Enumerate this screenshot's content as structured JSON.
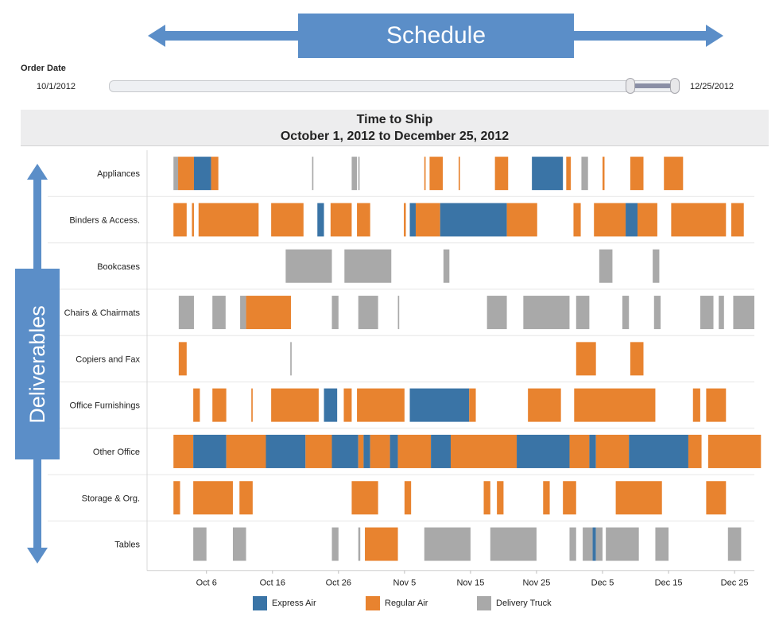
{
  "banner": {
    "schedule": "Schedule",
    "deliverables": "Deliverables"
  },
  "filter": {
    "title": "Order Date",
    "start": "10/1/2012",
    "end": "12/25/2012",
    "range_start_fraction": 0.92,
    "range_end_fraction": 1.0
  },
  "colors": {
    "express": "#3a74a6",
    "regular": "#e8832f",
    "truck": "#a9a9a9",
    "accent": "#5b8ec8"
  },
  "chart_data": {
    "type": "gantt",
    "title": "Time to Ship",
    "subtitle": "October 1, 2012 to December 25, 2012",
    "x_unit": "days since Oct 1, 2012",
    "xlim": [
      -4,
      88
    ],
    "tick_labels": [
      "Oct 6",
      "Oct 16",
      "Oct 26",
      "Nov 5",
      "Nov 15",
      "Nov 25",
      "Dec 5",
      "Dec 15",
      "Dec 25"
    ],
    "tick_values": [
      5,
      15,
      25,
      35,
      45,
      55,
      65,
      75,
      85
    ],
    "legend": [
      {
        "key": "express",
        "label": "Express Air"
      },
      {
        "key": "regular",
        "label": "Regular Air"
      },
      {
        "key": "truck",
        "label": "Delivery Truck"
      }
    ],
    "categories": [
      {
        "name": "Appliances",
        "bars": [
          [
            0.0,
            0.7,
            "truck"
          ],
          [
            0.7,
            3.1,
            "regular"
          ],
          [
            3.1,
            5.7,
            "express"
          ],
          [
            5.7,
            6.8,
            "regular"
          ],
          [
            21.0,
            21.2,
            "truck"
          ],
          [
            27.0,
            27.8,
            "truck"
          ],
          [
            28.0,
            28.2,
            "truck"
          ],
          [
            38.0,
            38.2,
            "regular"
          ],
          [
            38.8,
            40.8,
            "regular"
          ],
          [
            43.2,
            43.4,
            "regular"
          ],
          [
            48.7,
            50.7,
            "regular"
          ],
          [
            54.3,
            59.0,
            "express"
          ],
          [
            59.5,
            60.2,
            "regular"
          ],
          [
            61.8,
            62.8,
            "truck"
          ],
          [
            65.0,
            65.3,
            "regular"
          ],
          [
            69.2,
            71.2,
            "regular"
          ],
          [
            74.3,
            77.2,
            "regular"
          ]
        ]
      },
      {
        "name": "Binders & Access.",
        "bars": [
          [
            0.0,
            2.0,
            "regular"
          ],
          [
            2.8,
            3.1,
            "regular"
          ],
          [
            3.8,
            12.9,
            "regular"
          ],
          [
            14.8,
            19.7,
            "regular"
          ],
          [
            21.8,
            22.8,
            "express"
          ],
          [
            23.8,
            27.0,
            "regular"
          ],
          [
            27.8,
            29.8,
            "regular"
          ],
          [
            34.9,
            35.2,
            "regular"
          ],
          [
            35.8,
            36.7,
            "express"
          ],
          [
            36.7,
            40.4,
            "regular"
          ],
          [
            40.4,
            50.5,
            "express"
          ],
          [
            50.5,
            55.1,
            "regular"
          ],
          [
            60.6,
            61.7,
            "regular"
          ],
          [
            63.7,
            68.5,
            "regular"
          ],
          [
            68.5,
            70.3,
            "express"
          ],
          [
            70.3,
            73.3,
            "regular"
          ],
          [
            75.4,
            83.7,
            "regular"
          ],
          [
            84.5,
            86.4,
            "regular"
          ]
        ]
      },
      {
        "name": "Bookcases",
        "bars": [
          [
            17.0,
            24.0,
            "truck"
          ],
          [
            25.9,
            33.0,
            "truck"
          ],
          [
            40.9,
            41.8,
            "truck"
          ],
          [
            64.5,
            66.5,
            "truck"
          ],
          [
            72.6,
            73.6,
            "truck"
          ]
        ]
      },
      {
        "name": "Chairs & Chairmats",
        "bars": [
          [
            0.8,
            3.1,
            "truck"
          ],
          [
            5.9,
            7.9,
            "truck"
          ],
          [
            10.1,
            11.0,
            "truck"
          ],
          [
            11.0,
            17.8,
            "regular"
          ],
          [
            24.0,
            25.0,
            "truck"
          ],
          [
            28.0,
            31.0,
            "truck"
          ],
          [
            34.0,
            34.2,
            "truck"
          ],
          [
            47.5,
            50.5,
            "truck"
          ],
          [
            53.0,
            60.0,
            "truck"
          ],
          [
            61.0,
            63.0,
            "truck"
          ],
          [
            68.0,
            69.0,
            "truck"
          ],
          [
            72.8,
            73.8,
            "truck"
          ],
          [
            79.8,
            81.8,
            "truck"
          ],
          [
            82.6,
            83.4,
            "truck"
          ],
          [
            84.8,
            88.0,
            "truck"
          ]
        ]
      },
      {
        "name": "Copiers and Fax",
        "bars": [
          [
            0.8,
            2.0,
            "regular"
          ],
          [
            17.7,
            17.9,
            "truck"
          ],
          [
            61.0,
            64.0,
            "regular"
          ],
          [
            69.2,
            71.2,
            "regular"
          ]
        ]
      },
      {
        "name": "Office Furnishings",
        "bars": [
          [
            3.0,
            4.0,
            "regular"
          ],
          [
            5.9,
            8.0,
            "regular"
          ],
          [
            11.8,
            12.0,
            "regular"
          ],
          [
            14.8,
            22.0,
            "regular"
          ],
          [
            22.8,
            24.8,
            "express"
          ],
          [
            25.8,
            27.0,
            "regular"
          ],
          [
            27.8,
            35.0,
            "regular"
          ],
          [
            35.8,
            44.8,
            "express"
          ],
          [
            44.8,
            45.8,
            "regular"
          ],
          [
            53.7,
            58.7,
            "regular"
          ],
          [
            60.7,
            73.0,
            "regular"
          ],
          [
            78.7,
            79.8,
            "regular"
          ],
          [
            80.7,
            83.7,
            "regular"
          ]
        ]
      },
      {
        "name": "Other Office",
        "bars": [
          [
            0.0,
            3.0,
            "regular"
          ],
          [
            3.0,
            8.0,
            "express"
          ],
          [
            8.0,
            14.0,
            "regular"
          ],
          [
            14.0,
            20.0,
            "express"
          ],
          [
            20.0,
            24.0,
            "regular"
          ],
          [
            24.0,
            28.0,
            "express"
          ],
          [
            28.0,
            28.8,
            "regular"
          ],
          [
            28.8,
            29.8,
            "express"
          ],
          [
            29.8,
            32.8,
            "regular"
          ],
          [
            32.8,
            34.0,
            "express"
          ],
          [
            34.0,
            39.0,
            "regular"
          ],
          [
            39.0,
            42.0,
            "express"
          ],
          [
            42.0,
            52.0,
            "regular"
          ],
          [
            52.0,
            60.0,
            "express"
          ],
          [
            60.0,
            63.0,
            "regular"
          ],
          [
            63.0,
            64.0,
            "express"
          ],
          [
            64.0,
            69.0,
            "regular"
          ],
          [
            69.0,
            78.0,
            "express"
          ],
          [
            78.0,
            80.0,
            "regular"
          ],
          [
            81.0,
            89.0,
            "regular"
          ]
        ]
      },
      {
        "name": "Storage & Org.",
        "bars": [
          [
            0.0,
            1.0,
            "regular"
          ],
          [
            3.0,
            9.0,
            "regular"
          ],
          [
            10.0,
            12.0,
            "regular"
          ],
          [
            27.0,
            31.0,
            "regular"
          ],
          [
            35.0,
            36.0,
            "regular"
          ],
          [
            47.0,
            48.0,
            "regular"
          ],
          [
            49.0,
            50.0,
            "regular"
          ],
          [
            56.0,
            57.0,
            "regular"
          ],
          [
            59.0,
            61.0,
            "regular"
          ],
          [
            67.0,
            74.0,
            "regular"
          ],
          [
            80.7,
            83.7,
            "regular"
          ]
        ]
      },
      {
        "name": "Tables",
        "bars": [
          [
            3.0,
            5.0,
            "truck"
          ],
          [
            9.0,
            11.0,
            "truck"
          ],
          [
            24.0,
            25.0,
            "truck"
          ],
          [
            28.0,
            28.3,
            "truck"
          ],
          [
            29.0,
            34.0,
            "regular"
          ],
          [
            38.0,
            45.0,
            "truck"
          ],
          [
            48.0,
            55.0,
            "truck"
          ],
          [
            60.0,
            61.0,
            "truck"
          ],
          [
            62.0,
            63.5,
            "truck"
          ],
          [
            63.5,
            64.0,
            "express"
          ],
          [
            64.0,
            65.0,
            "truck"
          ],
          [
            65.5,
            70.5,
            "truck"
          ],
          [
            73.0,
            75.0,
            "truck"
          ],
          [
            84.0,
            86.0,
            "truck"
          ]
        ]
      }
    ]
  }
}
